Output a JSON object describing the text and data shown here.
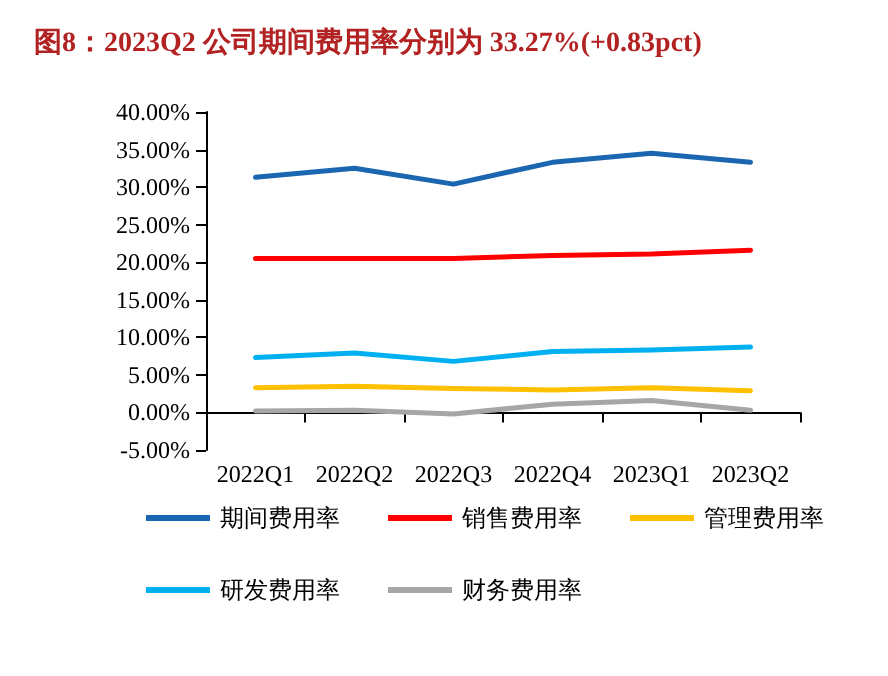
{
  "chart_data": {
    "type": "line",
    "title": "图8：2023Q2 公司期间费用率分别为 33.27%(+0.83pct)",
    "categories": [
      "2022Q1",
      "2022Q2",
      "2022Q3",
      "2022Q4",
      "2023Q1",
      "2023Q2"
    ],
    "series": [
      {
        "name": "期间费用率",
        "color": "#1a66b0",
        "values": [
          31.3,
          32.5,
          30.4,
          33.3,
          34.5,
          33.3
        ]
      },
      {
        "name": "销售费用率",
        "color": "#ff0000",
        "values": [
          20.5,
          20.5,
          20.5,
          20.9,
          21.1,
          21.6
        ]
      },
      {
        "name": "管理费用率",
        "color": "#ffc000",
        "values": [
          3.3,
          3.5,
          3.2,
          3.0,
          3.3,
          2.9
        ]
      },
      {
        "name": "研发费用率",
        "color": "#00b0f0",
        "values": [
          7.3,
          7.9,
          6.8,
          8.1,
          8.3,
          8.7
        ]
      },
      {
        "name": "财务费用率",
        "color": "#a6a6a6",
        "values": [
          0.2,
          0.3,
          -0.2,
          1.1,
          1.6,
          0.3
        ]
      }
    ],
    "ylim": [
      -5,
      40
    ],
    "yticks": [
      {
        "value": -5,
        "label": "-5.00%"
      },
      {
        "value": 0,
        "label": "0.00%"
      },
      {
        "value": 5,
        "label": "5.00%"
      },
      {
        "value": 10,
        "label": "10.00%"
      },
      {
        "value": 15,
        "label": "15.00%"
      },
      {
        "value": 20,
        "label": "20.00%"
      },
      {
        "value": 25,
        "label": "25.00%"
      },
      {
        "value": 30,
        "label": "30.00%"
      },
      {
        "value": 35,
        "label": "35.00%"
      },
      {
        "value": 40,
        "label": "40.00%"
      }
    ],
    "grid": false,
    "legend": "bottom",
    "marker": "none",
    "line_style": "solid"
  }
}
